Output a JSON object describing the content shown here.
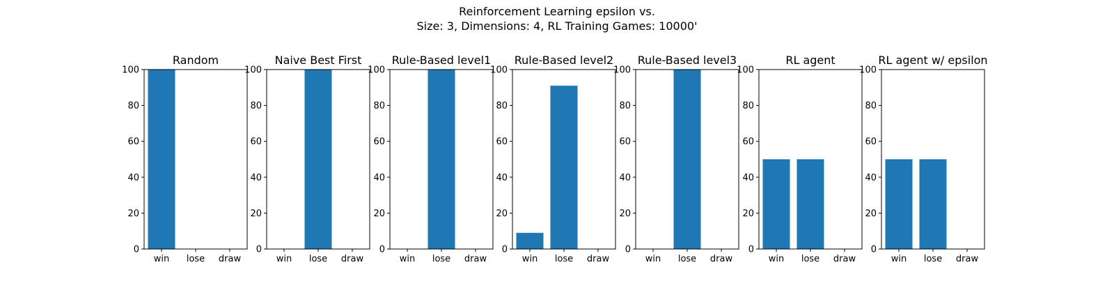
{
  "figure": {
    "title_line1": "Reinforcement Learning epsilon vs.",
    "title_line2": "Size: 3, Dimensions: 4, RL Training Games: 10000'"
  },
  "chart_data": [
    {
      "type": "bar",
      "title": "Random",
      "categories": [
        "win",
        "lose",
        "draw"
      ],
      "values": [
        100,
        0,
        0
      ],
      "ylim": [
        0,
        100
      ],
      "yticks": [
        "0",
        "20",
        "40",
        "60",
        "80",
        "100"
      ],
      "grid": false
    },
    {
      "type": "bar",
      "title": "Naive Best First",
      "categories": [
        "win",
        "lose",
        "draw"
      ],
      "values": [
        0,
        100,
        0
      ],
      "ylim": [
        0,
        100
      ],
      "yticks": [
        "0",
        "20",
        "40",
        "60",
        "80",
        "100"
      ],
      "grid": false
    },
    {
      "type": "bar",
      "title": "Rule-Based level1",
      "categories": [
        "win",
        "lose",
        "draw"
      ],
      "values": [
        0,
        100,
        0
      ],
      "ylim": [
        0,
        100
      ],
      "yticks": [
        "0",
        "20",
        "40",
        "60",
        "80",
        "100"
      ],
      "grid": false
    },
    {
      "type": "bar",
      "title": "Rule-Based level2",
      "categories": [
        "win",
        "lose",
        "draw"
      ],
      "values": [
        9,
        91,
        0
      ],
      "ylim": [
        0,
        100
      ],
      "yticks": [
        "0",
        "20",
        "40",
        "60",
        "80",
        "100"
      ],
      "grid": false
    },
    {
      "type": "bar",
      "title": "Rule-Based level3",
      "categories": [
        "win",
        "lose",
        "draw"
      ],
      "values": [
        0,
        100,
        0
      ],
      "ylim": [
        0,
        100
      ],
      "yticks": [
        "0",
        "20",
        "40",
        "60",
        "80",
        "100"
      ],
      "grid": false
    },
    {
      "type": "bar",
      "title": "RL agent",
      "categories": [
        "win",
        "lose",
        "draw"
      ],
      "values": [
        50,
        50,
        0
      ],
      "ylim": [
        0,
        100
      ],
      "yticks": [
        "0",
        "20",
        "40",
        "60",
        "80",
        "100"
      ],
      "grid": false
    },
    {
      "type": "bar",
      "title": "RL agent w/ epsilon",
      "categories": [
        "win",
        "lose",
        "draw"
      ],
      "values": [
        50,
        50,
        0
      ],
      "ylim": [
        0,
        100
      ],
      "yticks": [
        "0",
        "20",
        "40",
        "60",
        "80",
        "100"
      ],
      "grid": false
    }
  ],
  "colors": {
    "bar": "#1f77b4",
    "axis": "#000000",
    "background": "#ffffff"
  }
}
